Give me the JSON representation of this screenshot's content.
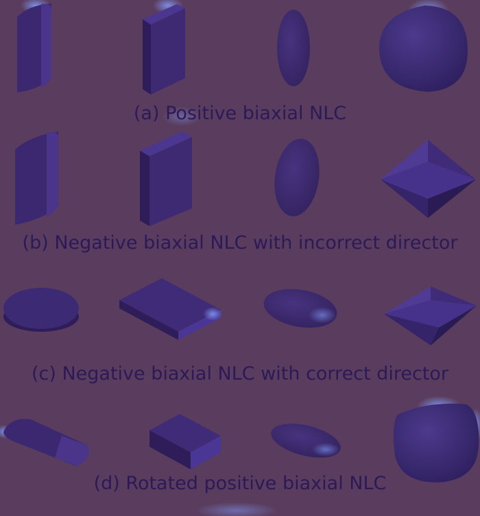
{
  "palette": {
    "background": "#5a3d5e",
    "face": "#3f2a6e",
    "face_dark": "#2e1d58",
    "face_light": "#51399a",
    "highlight": "#6f7fe0",
    "text": "#2b1a57"
  },
  "rows": [
    {
      "caption": "(a) Positive biaxial NLC",
      "shapes": [
        "spherocylinder",
        "cuboid",
        "ellipsoid",
        "superquadric-blob"
      ]
    },
    {
      "caption": "(b) Negative biaxial NLC with incorrect director",
      "shapes": [
        "spherocylinder",
        "cuboid",
        "ellipsoid",
        "double-cone"
      ]
    },
    {
      "caption": "(c) Negative biaxial NLC with correct director",
      "shapes": [
        "disc",
        "flat-cuboid",
        "flat-ellipsoid",
        "double-cone"
      ]
    },
    {
      "caption": "(d) Rotated positive biaxial NLC",
      "shapes": [
        "tilted-spherocylinder",
        "tilted-cuboid",
        "tilted-ellipsoid",
        "superquadric-blob"
      ]
    }
  ]
}
